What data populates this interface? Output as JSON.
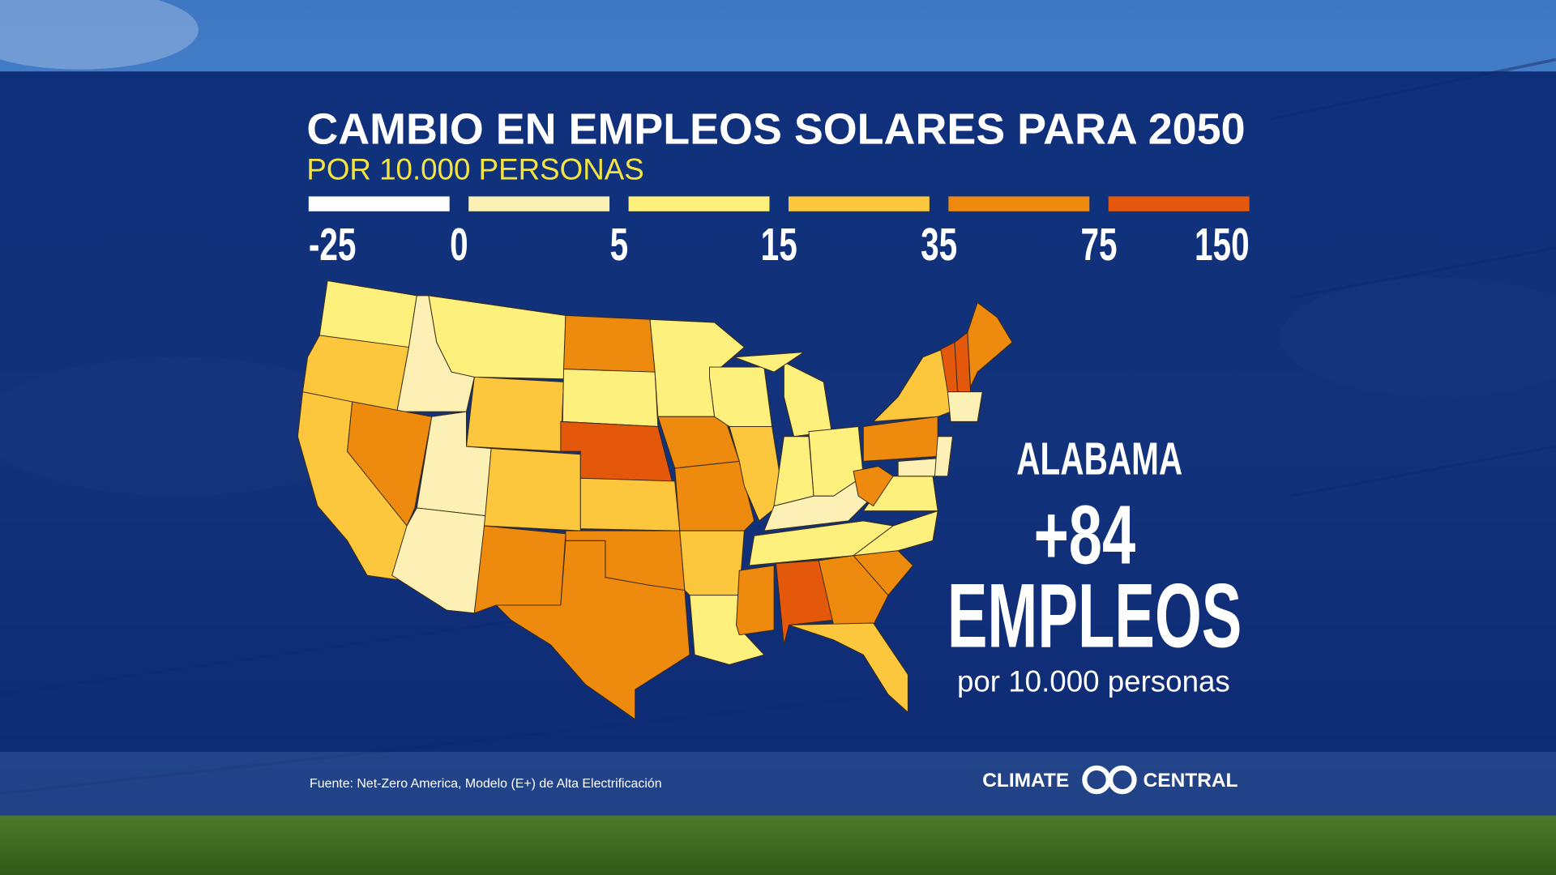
{
  "header": {
    "title": "CAMBIO EN EMPLEOS SOLARES PARA 2050",
    "subtitle": "POR 10.000 PERSONAS"
  },
  "legend": {
    "ticks": [
      -25,
      0,
      5,
      15,
      35,
      75,
      150
    ],
    "colors": [
      "#ffffff",
      "#fdf0b4",
      "#fdf07c",
      "#fcc73c",
      "#ee8b0f",
      "#e3580b"
    ]
  },
  "callout": {
    "state": "ALABAMA",
    "value": 84,
    "value_label": "+84",
    "unit": "EMPLEOS",
    "note": "por 10.000 personas"
  },
  "footer": {
    "source": "Fuente: Net-Zero America, Modelo (E+) de Alta Electrificación",
    "logo_left": "CLIMATE",
    "logo_right": "CENTRAL"
  }
}
